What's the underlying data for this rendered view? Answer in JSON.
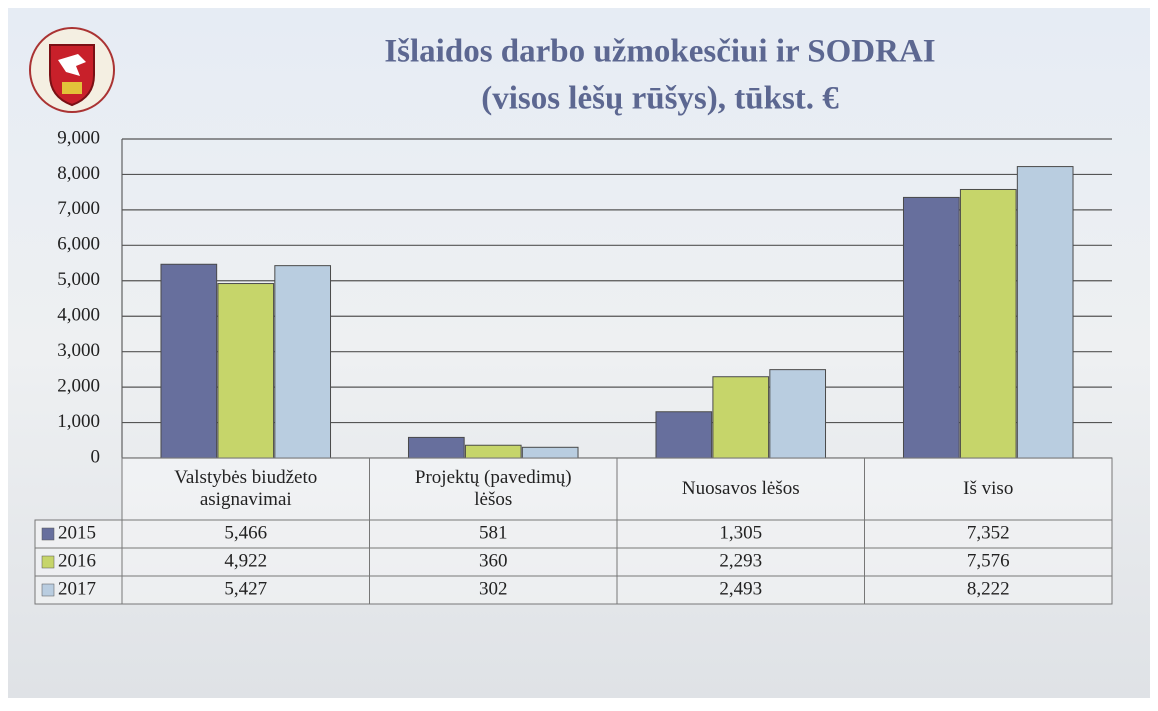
{
  "chart_data": {
    "type": "bar",
    "title": "Išlaidos darbo užmokesčiui ir SODRAI",
    "subtitle": "(visos lėšų rūšys), tūkst. €",
    "categories": [
      "Valstybės biudžeto asignavimai",
      "Projektų (pavedimų) lėšos",
      "Nuosavos lėšos",
      "Iš viso"
    ],
    "series": [
      {
        "name": "2015",
        "color": "#676f9d",
        "values": [
          5466,
          581,
          1305,
          7352
        ],
        "value_labels": [
          "5,466",
          "581",
          "1,305",
          "7,352"
        ]
      },
      {
        "name": "2016",
        "color": "#c6d56a",
        "values": [
          4922,
          360,
          2293,
          7576
        ],
        "value_labels": [
          "4,922",
          "360",
          "2,293",
          "7,576"
        ]
      },
      {
        "name": "2017",
        "color": "#b9cde0",
        "values": [
          5427,
          302,
          2493,
          8222
        ],
        "value_labels": [
          "5,427",
          "302",
          "2,493",
          "8,222"
        ]
      }
    ],
    "ylim": [
      0,
      9000
    ],
    "yticks": [
      0,
      {
        "value": 1000,
        "label": "1,000"
      },
      {
        "value": 2000,
        "label": "2,000"
      },
      {
        "value": 3000,
        "label": "3,000"
      },
      {
        "value": 4000,
        "label": "4,000"
      },
      {
        "value": 5000,
        "label": "5,000"
      },
      {
        "value": 6000,
        "label": "6,000"
      },
      {
        "value": 7000,
        "label": "7,000"
      },
      {
        "value": 8000,
        "label": "8,000"
      },
      {
        "value": 9000,
        "label": "9,000"
      }
    ],
    "grid": true
  }
}
